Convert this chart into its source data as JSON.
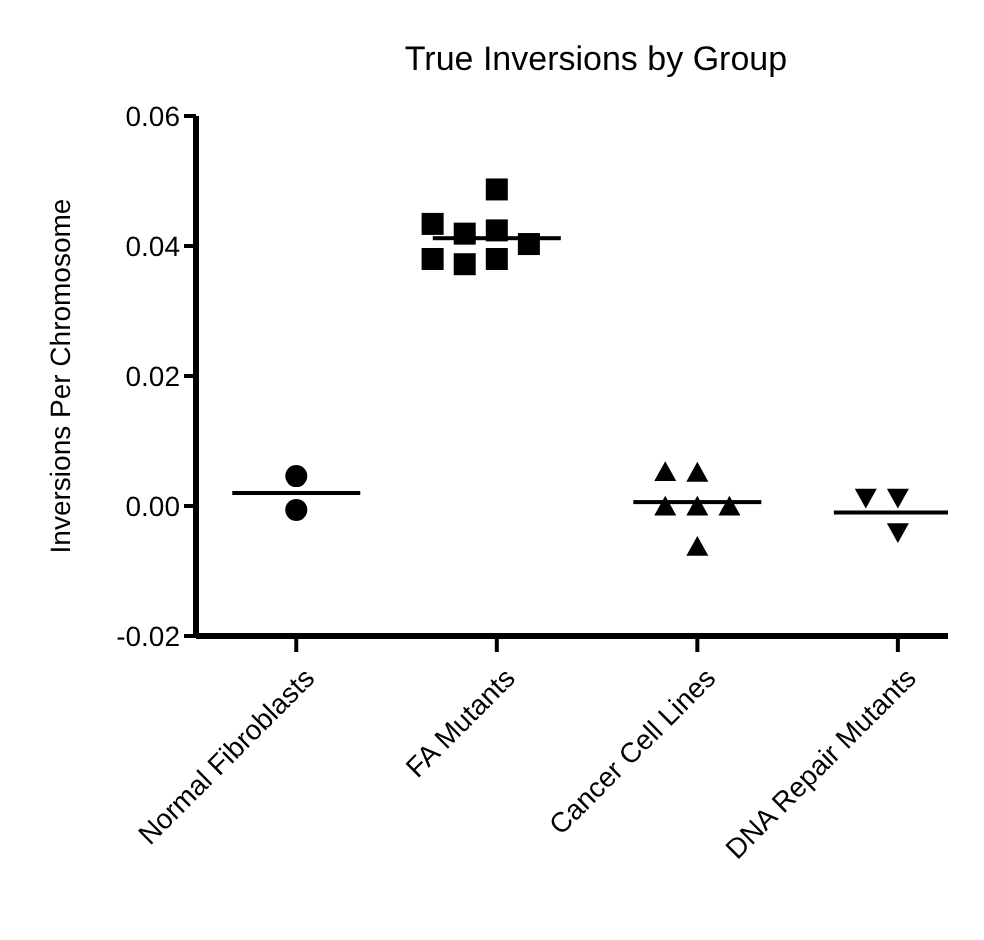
{
  "chart_data": {
    "type": "scatter",
    "title": "True Inversions by Group",
    "ylabel": "Inversions Per Chromosome",
    "categories": [
      "Normal Fibroblasts",
      "FA Mutants",
      "Cancer Cell Lines",
      "DNA Repair Mutants"
    ],
    "series": [
      {
        "marker": "circle",
        "color": "#000000",
        "x": [
          "Normal Fibroblasts",
          "Normal Fibroblasts"
        ],
        "values": [
          0.0046,
          -0.0006
        ]
      },
      {
        "marker": "square",
        "color": "#000000",
        "x": [
          "FA Mutants",
          "FA Mutants",
          "FA Mutants",
          "FA Mutants",
          "FA Mutants",
          "FA Mutants",
          "FA Mutants",
          "FA Mutants"
        ],
        "values": [
          0.0424,
          0.038,
          0.0487,
          0.0419,
          0.0372,
          0.0403,
          0.0434,
          0.038
        ]
      },
      {
        "marker": "triangle",
        "color": "#000000",
        "x": [
          "Cancer Cell Lines",
          "Cancer Cell Lines",
          "Cancer Cell Lines",
          "Cancer Cell Lines",
          "Cancer Cell Lines",
          "Cancer Cell Lines"
        ],
        "values": [
          -0.0001,
          0.0051,
          -0.0001,
          -0.0063,
          0.0052,
          -0.0001
        ]
      },
      {
        "marker": "triangle-down",
        "color": "#000000",
        "x": [
          "DNA Repair Mutants",
          "DNA Repair Mutants",
          "DNA Repair Mutants"
        ],
        "values": [
          0.0013,
          -0.004,
          0.0013
        ]
      },
      {
        "type": "box",
        "color": "#000000",
        "boxes": [
          {
            "low": 0.002,
            "q1": 0.002,
            "median": 0.002,
            "q3": 0.002,
            "high": 0.002
          },
          {
            "low": 0.0412,
            "q1": 0.0412,
            "median": 0.0412,
            "q3": 0.0412,
            "high": 0.0412
          },
          {
            "low": 0.0006,
            "q1": 0.0006,
            "median": 0.0006,
            "q3": 0.0006,
            "high": 0.0006
          },
          {
            "low": -0.001,
            "q1": -0.001,
            "median": -0.001,
            "q3": -0.001,
            "high": -0.001
          }
        ]
      }
    ],
    "ylim": [
      -0.02,
      0.06
    ],
    "yticks": [
      {
        "value": -0.02,
        "label": "-0.02"
      },
      {
        "value": 0.0,
        "label": "0.00"
      },
      {
        "value": 0.02,
        "label": "0.02"
      },
      {
        "value": 0.04,
        "label": "0.04"
      },
      {
        "value": 0.06,
        "label": "0.06"
      }
    ],
    "grid": false,
    "legend": false
  }
}
